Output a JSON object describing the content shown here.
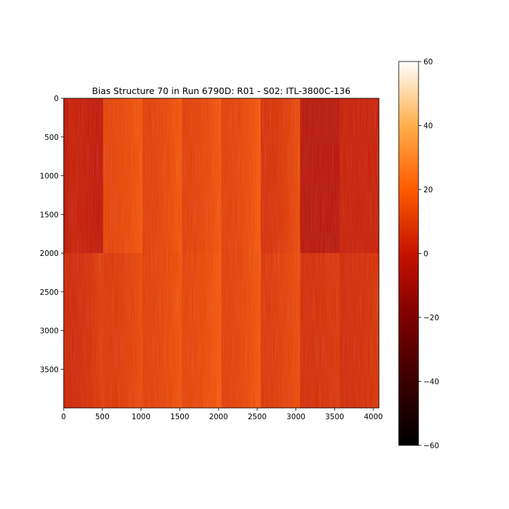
{
  "chart_data": {
    "type": "heatmap",
    "title": "Bias Structure 70 in Run 6790D: R01 - S02: ITL-3800C-136",
    "xlabel": "",
    "ylabel": "",
    "xlim": [
      0,
      4072
    ],
    "ylim": [
      4000,
      0
    ],
    "x_ticks": [
      0,
      500,
      1000,
      1500,
      2000,
      2500,
      3000,
      3500,
      4000
    ],
    "x_tick_labels": [
      "0",
      "500",
      "1000",
      "1500",
      "2000",
      "2500",
      "3000",
      "3500",
      "4000"
    ],
    "y_ticks": [
      0,
      500,
      1000,
      1500,
      2000,
      2500,
      3000,
      3500
    ],
    "y_tick_labels": [
      "0",
      "500",
      "1000",
      "1500",
      "2000",
      "2500",
      "3000",
      "3500"
    ],
    "colormap": "gist_heat",
    "colorbar": {
      "vmin": -60,
      "vmax": 60,
      "ticks": [
        -60,
        -40,
        -20,
        0,
        20,
        40,
        60
      ],
      "tick_labels": [
        "−60",
        "−40",
        "−20",
        "0",
        "20",
        "40",
        "60"
      ]
    },
    "row_split": 2000,
    "segment_edges": [
      0,
      509,
      1018,
      1527,
      2036,
      2545,
      3054,
      3563,
      4072
    ],
    "segments": {
      "top": [
        {
          "base": 2,
          "ramp": -4,
          "edge": -6
        },
        {
          "base": 12,
          "ramp": 6,
          "edge": 0
        },
        {
          "base": 11,
          "ramp": 7,
          "edge": 0
        },
        {
          "base": 11,
          "ramp": 7,
          "edge": 0
        },
        {
          "base": 11,
          "ramp": 8,
          "edge": 0
        },
        {
          "base": 7,
          "ramp": 8,
          "edge": 0
        },
        {
          "base": -3,
          "ramp": 0,
          "edge": 0
        },
        {
          "base": 2,
          "ramp": 0,
          "edge": 0
        }
      ],
      "bottom": [
        {
          "base": 4,
          "ramp": 7,
          "edge": 0
        },
        {
          "base": 9,
          "ramp": 5,
          "edge": 0
        },
        {
          "base": 11,
          "ramp": 6,
          "edge": 0
        },
        {
          "base": 12,
          "ramp": 7,
          "edge": 0
        },
        {
          "base": 11,
          "ramp": 7,
          "edge": 0
        },
        {
          "base": 9,
          "ramp": 6,
          "edge": 0
        },
        {
          "base": 6,
          "ramp": 3,
          "edge": 0
        },
        {
          "base": 5,
          "ramp": 3,
          "edge": 0
        }
      ]
    }
  }
}
